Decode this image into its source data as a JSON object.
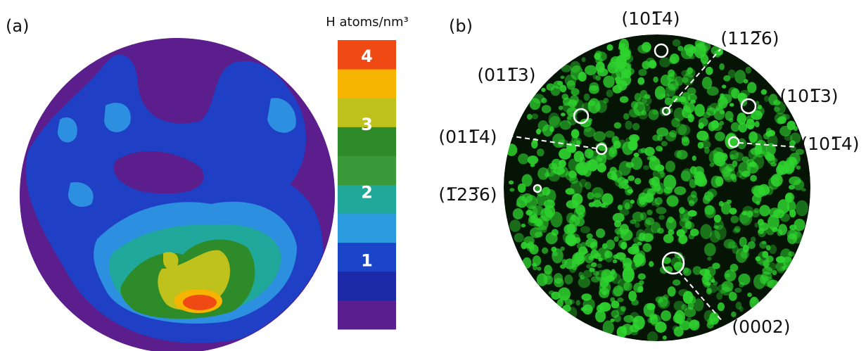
{
  "panel_a": {
    "label": "(a)",
    "colorbar": {
      "title": "H atoms/nm³",
      "ticks": [
        1,
        2,
        3,
        4
      ],
      "lim": [
        0,
        4.25
      ],
      "colors": [
        "#5a1e8e",
        "#1d2aa8",
        "#1b45c8",
        "#2d9be0",
        "#20a89a",
        "#3a9a3a",
        "#2e8b2a",
        "#bfc21c",
        "#f7b400",
        "#f04a14"
      ]
    }
  },
  "panel_b": {
    "label": "(b)",
    "planes": [
      "(101̅4)",
      "(112̅6)",
      "(011̅3)",
      "(101̅3)",
      "(011̅4)",
      "(101̅4)",
      "(1̅23̅6)",
      "(0002)"
    ]
  }
}
